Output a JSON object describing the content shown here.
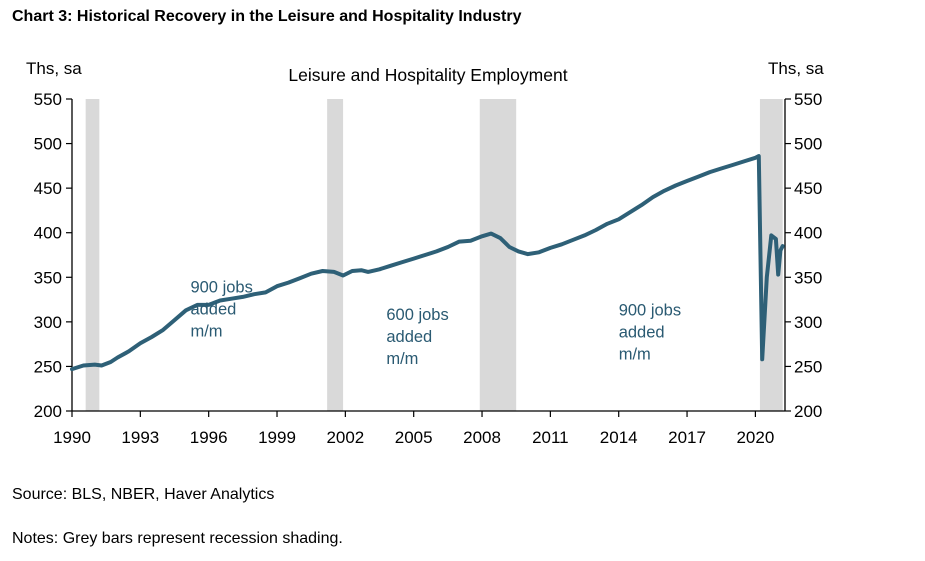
{
  "page": {
    "title": "Chart 3: Historical Recovery in the Leisure and Hospitality Industry",
    "source": "Source: BLS, NBER, Haver Analytics",
    "notes": "Notes: Grey bars represent recession shading."
  },
  "chart_data": {
    "type": "line",
    "title": "Leisure and Hospitality Employment",
    "y_unit_left": "Ths, sa",
    "y_unit_right": "Ths, sa",
    "xlim": [
      1990,
      2021.3
    ],
    "ylim": [
      200,
      550
    ],
    "x_ticks": [
      1990,
      1993,
      1996,
      1999,
      2002,
      2005,
      2008,
      2011,
      2014,
      2017,
      2020
    ],
    "x_tick_labels": [
      "1990",
      "1993",
      "1996",
      "1999",
      "2002",
      "2005",
      "2008",
      "2011",
      "2014",
      "2017",
      "2020"
    ],
    "y_ticks": [
      200,
      250,
      300,
      350,
      400,
      450,
      500,
      550
    ],
    "y_tick_labels": [
      "200",
      "250",
      "300",
      "350",
      "400",
      "450",
      "500",
      "550"
    ],
    "line_color": "#2e6077",
    "recession_color": "#d9d9d9",
    "recessions": [
      {
        "start": 1990.6,
        "end": 1991.2
      },
      {
        "start": 2001.2,
        "end": 2001.9
      },
      {
        "start": 2007.9,
        "end": 2009.5
      },
      {
        "start": 2020.2,
        "end": 2021.2
      }
    ],
    "annotations": [
      {
        "lines": [
          "900 jobs",
          "added",
          "m/m"
        ],
        "x": 1995.2,
        "y": 333
      },
      {
        "lines": [
          "600 jobs",
          "added",
          "m/m"
        ],
        "x": 2003.8,
        "y": 302
      },
      {
        "lines": [
          "900 jobs",
          "added",
          "m/m"
        ],
        "x": 2014.0,
        "y": 307
      }
    ],
    "series": [
      {
        "x": [
          1990.0,
          1990.5,
          1991.0,
          1991.3,
          1991.7,
          1992.0,
          1992.5,
          1993.0,
          1993.5,
          1994.0,
          1994.5,
          1995.0,
          1995.5,
          1996.0,
          1996.5,
          1997.0,
          1997.5,
          1998.0,
          1998.5,
          1999.0,
          1999.5,
          2000.0,
          2000.5,
          2001.0,
          2001.5,
          2001.9,
          2002.3,
          2002.7,
          2003.0,
          2003.5,
          2004.0,
          2004.5,
          2005.0,
          2005.5,
          2006.0,
          2006.5,
          2007.0,
          2007.5,
          2008.0,
          2008.4,
          2008.8,
          2009.2,
          2009.6,
          2010.0,
          2010.5,
          2011.0,
          2011.5,
          2012.0,
          2012.5,
          2013.0,
          2013.5,
          2014.0,
          2014.5,
          2015.0,
          2015.5,
          2016.0,
          2016.5,
          2017.0,
          2017.5,
          2018.0,
          2018.5,
          2019.0,
          2019.5,
          2020.0,
          2020.15,
          2020.3,
          2020.5,
          2020.7,
          2020.9,
          2021.0,
          2021.1,
          2021.2
        ],
        "values": [
          247,
          251,
          252,
          251,
          255,
          260,
          267,
          276,
          283,
          291,
          302,
          313,
          319,
          319,
          324,
          326,
          328,
          331,
          333,
          340,
          344,
          349,
          354,
          357,
          356,
          352,
          357,
          358,
          356,
          359,
          363,
          367,
          371,
          375,
          379,
          384,
          390,
          391,
          396,
          399,
          394,
          384,
          379,
          376,
          378,
          383,
          387,
          392,
          397,
          403,
          410,
          415,
          423,
          431,
          440,
          447,
          453,
          458,
          463,
          468,
          472,
          476,
          480,
          484,
          486,
          258,
          350,
          397,
          393,
          353,
          380,
          385
        ]
      }
    ]
  }
}
